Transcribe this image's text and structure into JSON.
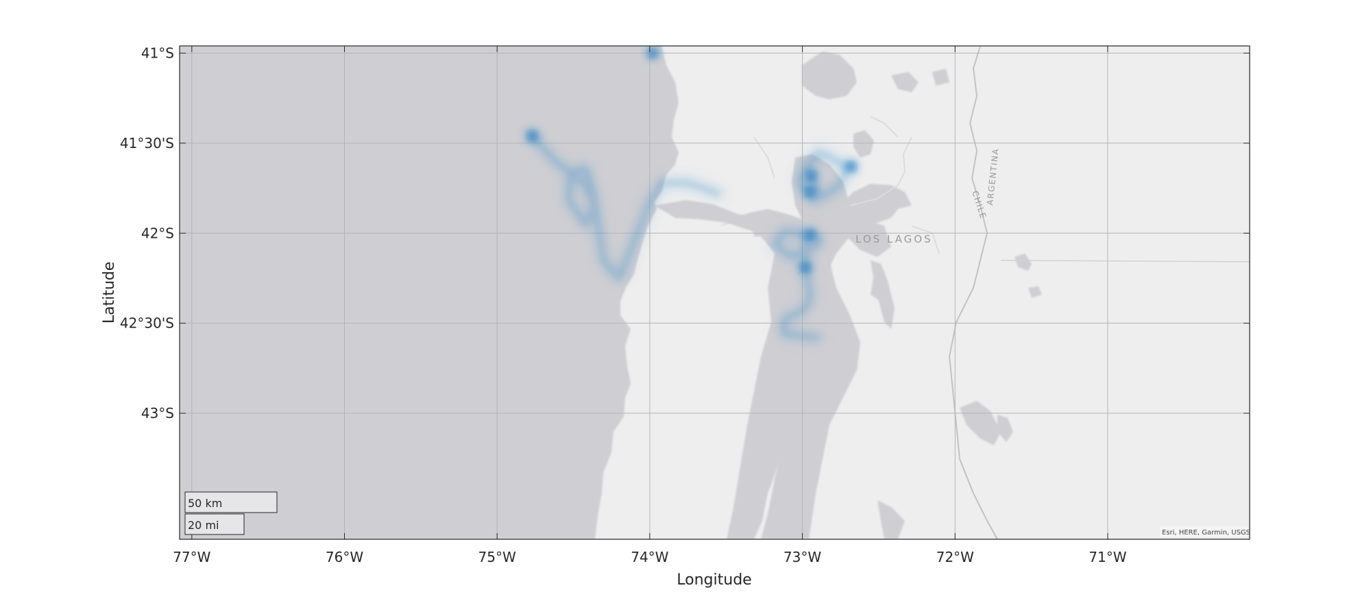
{
  "map": {
    "xlabel": "Longitude",
    "ylabel": "Latitude",
    "region_label": "LOS LAGOS",
    "border_labels": [
      "CHILE",
      "ARGENTINA"
    ],
    "attribution": "Esri, HERE, Garmin, USGS",
    "scale_bar": {
      "metric": "50 km",
      "imperial": "20 mi"
    },
    "lon_limits": [
      -77.08,
      -70.07
    ],
    "lat_limits": [
      -43.7,
      -40.96
    ],
    "x_ticks": [
      {
        "value": -77,
        "label": "77°W"
      },
      {
        "value": -76,
        "label": "76°W"
      },
      {
        "value": -75,
        "label": "75°W"
      },
      {
        "value": -74,
        "label": "74°W"
      },
      {
        "value": -73,
        "label": "73°W"
      },
      {
        "value": -72,
        "label": "72°W"
      },
      {
        "value": -71,
        "label": "71°W"
      }
    ],
    "y_ticks": [
      {
        "value": -41,
        "label": "41°S"
      },
      {
        "value": -41.5,
        "label": "41°30'S"
      },
      {
        "value": -42,
        "label": "42°S"
      },
      {
        "value": -42.5,
        "label": "42°30'S"
      },
      {
        "value": -43,
        "label": "43°S"
      }
    ],
    "colors": {
      "ocean": "#cfcfd3",
      "land": "#eeeeee",
      "grid": "#b4b4b8",
      "density": "#1a78c2",
      "border": "#bdbdbd"
    }
  },
  "chart_data": {
    "type": "heatmap",
    "title": "",
    "xlabel": "Longitude",
    "ylabel": "Latitude",
    "xlim": [
      -77.08,
      -70.07
    ],
    "ylim": [
      -43.7,
      -40.96
    ],
    "grid": true,
    "series": [
      {
        "track": [
          [
            -74.77,
            -41.46
          ],
          [
            -74.62,
            -41.6
          ],
          [
            -74.42,
            -41.73
          ],
          [
            -74.36,
            -41.85
          ],
          [
            -74.42,
            -41.95
          ],
          [
            -74.53,
            -41.82
          ],
          [
            -74.52,
            -41.66
          ],
          [
            -74.42,
            -41.64
          ],
          [
            -74.37,
            -41.78
          ],
          [
            -74.33,
            -42.0
          ],
          [
            -74.3,
            -42.16
          ],
          [
            -74.2,
            -42.25
          ],
          [
            -74.08,
            -42.0
          ],
          [
            -74.0,
            -41.83
          ],
          [
            -73.92,
            -41.72
          ],
          [
            -73.75,
            -41.72
          ],
          [
            -73.55,
            -41.78
          ]
        ]
      },
      {
        "track": [
          [
            -72.92,
            -41.82
          ],
          [
            -73.02,
            -41.72
          ],
          [
            -72.96,
            -41.6
          ],
          [
            -72.86,
            -41.56
          ],
          [
            -72.78,
            -41.6
          ],
          [
            -72.7,
            -41.63
          ],
          [
            -72.76,
            -41.74
          ],
          [
            -72.88,
            -41.8
          ],
          [
            -72.98,
            -41.65
          ],
          [
            -72.9,
            -41.55
          ]
        ]
      },
      {
        "track": [
          [
            -72.92,
            -42.01
          ],
          [
            -73.12,
            -41.99
          ],
          [
            -73.18,
            -42.06
          ],
          [
            -73.08,
            -42.13
          ],
          [
            -72.96,
            -42.1
          ],
          [
            -72.88,
            -42.04
          ],
          [
            -72.98,
            -42.0
          ],
          [
            -72.98,
            -42.18
          ],
          [
            -72.95,
            -42.35
          ],
          [
            -72.98,
            -42.42
          ],
          [
            -73.12,
            -42.48
          ],
          [
            -73.12,
            -42.56
          ],
          [
            -72.9,
            -42.58
          ]
        ]
      }
    ],
    "hotspots": [
      {
        "lon": -73.98,
        "lat": -41.0
      },
      {
        "lon": -74.77,
        "lat": -41.46
      },
      {
        "lon": -72.68,
        "lat": -41.63
      },
      {
        "lon": -72.95,
        "lat": -41.77
      },
      {
        "lon": -72.95,
        "lat": -42.01
      },
      {
        "lon": -72.98,
        "lat": -42.19
      },
      {
        "lon": -72.94,
        "lat": -41.68
      }
    ]
  }
}
